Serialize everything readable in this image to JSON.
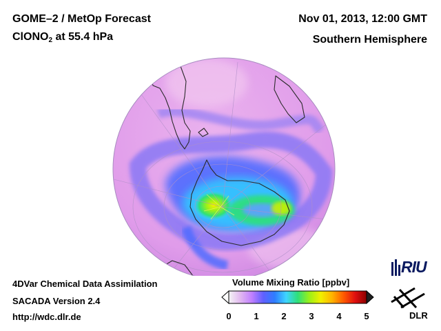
{
  "header": {
    "title_line1": "GOME–2 / MetOp Forecast",
    "species_prefix": "ClONO",
    "species_subscript": "2",
    "species_suffix": " at 55.4 hPa",
    "date": "Nov 01, 2013, 12:00 GMT",
    "region": "Southern Hemisphere"
  },
  "footer": {
    "line1": "4DVar Chemical Data Assimilation",
    "line2": "SACADA Version 2.4",
    "line3": "http://wdc.dlr.de"
  },
  "colorbar": {
    "title": "Volume Mixing Ratio [ppbv]",
    "ticks": [
      "0",
      "1",
      "2",
      "3",
      "4",
      "5"
    ],
    "colors": [
      "#f4f4f4",
      "#e2b8f0",
      "#c080ff",
      "#6060ff",
      "#2e7dff",
      "#3fd5ff",
      "#2ee07a",
      "#9af019",
      "#f1f000",
      "#ffb300",
      "#ff5a00",
      "#e01010",
      "#8b0000"
    ]
  },
  "logos": {
    "riu": "RIU",
    "dlr": "DLR"
  },
  "colors": {
    "globe_background": "#e4a2e8",
    "coastline": "#2a2a2a",
    "accent_green": "#3fe07a",
    "accent_blue": "#5070ff"
  }
}
